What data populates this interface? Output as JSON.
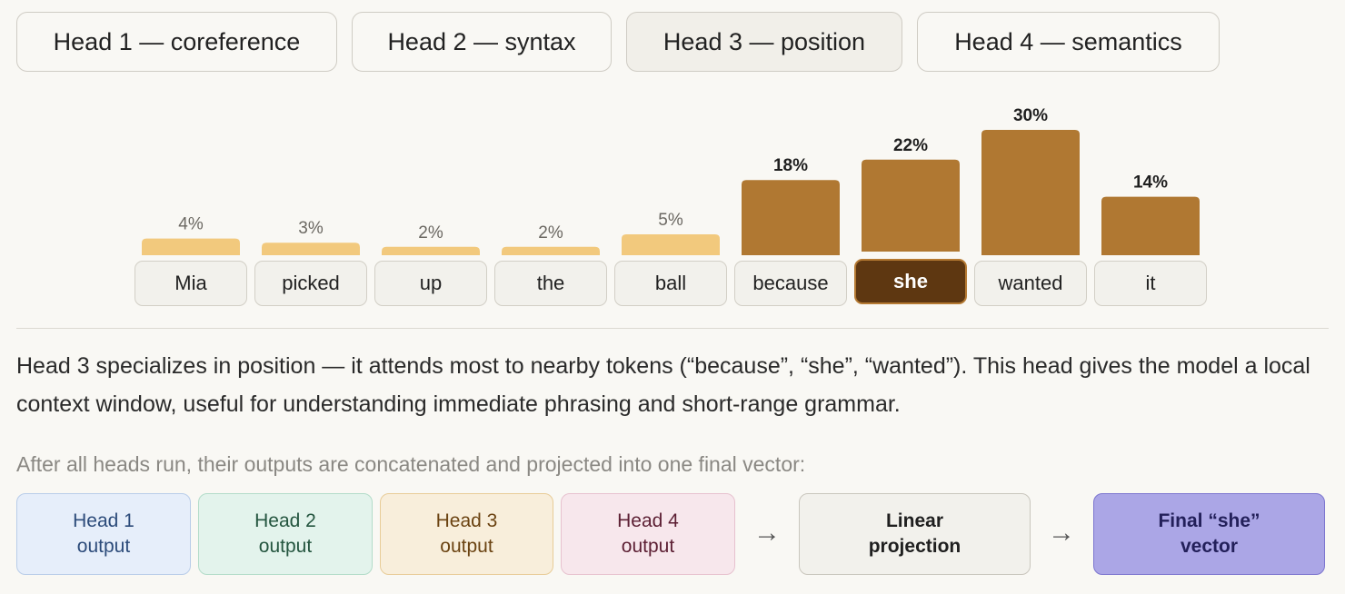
{
  "tabs": [
    {
      "label": "Head 1 — coreference",
      "active": false
    },
    {
      "label": "Head 2 — syntax",
      "active": false
    },
    {
      "label": "Head 3 — position",
      "active": true
    },
    {
      "label": "Head 4 — semantics",
      "active": false
    }
  ],
  "chart_data": {
    "type": "bar",
    "categories": [
      "Mia",
      "picked",
      "up",
      "the",
      "ball",
      "because",
      "she",
      "wanted",
      "it"
    ],
    "values": [
      4,
      3,
      2,
      2,
      5,
      18,
      22,
      30,
      14
    ],
    "value_labels": [
      "4%",
      "3%",
      "2%",
      "2%",
      "5%",
      "18%",
      "22%",
      "30%",
      "14%"
    ],
    "highlight_threshold": 10,
    "colors": {
      "low": "#f2c97d",
      "high": "#b07832"
    },
    "query_token": "she"
  },
  "description": "Head 3 specializes in position — it attends most to nearby tokens (“because”, “she”, “wanted”). This head gives the model a local context window, useful for understanding immediate phrasing and short-range grammar.",
  "subdescription": "After all heads run, their outputs are concatenated and projected into one final vector:",
  "flow": {
    "heads": [
      {
        "line1": "Head 1",
        "line2": "output"
      },
      {
        "line1": "Head 2",
        "line2": "output"
      },
      {
        "line1": "Head 3",
        "line2": "output"
      },
      {
        "line1": "Head 4",
        "line2": "output"
      }
    ],
    "arrow": "→",
    "projection": {
      "line1": "Linear",
      "line2": "projection"
    },
    "final": {
      "line1": "Final “she”",
      "line2": "vector"
    }
  }
}
